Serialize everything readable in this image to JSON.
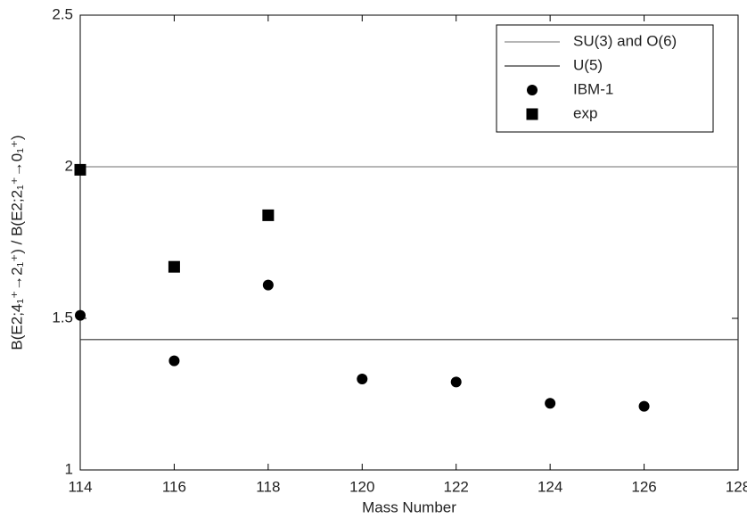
{
  "chart_data": {
    "type": "scatter",
    "xlabel": "Mass Number",
    "ylabel": "B(E2;4₁⁺→2₁⁺) / B(E2;2₁⁺→0₁⁺)",
    "xlim": [
      114,
      128
    ],
    "xticks": [
      114,
      116,
      118,
      120,
      122,
      124,
      126,
      128
    ],
    "ylim": [
      1,
      2.5
    ],
    "yticks": [
      1,
      1.5,
      2,
      2.5
    ],
    "legend": "upper right",
    "series": [
      {
        "name": "SU(3) and O(6)",
        "color": "#8a8a8a",
        "style": "line",
        "x": [
          114,
          128
        ],
        "values": [
          2,
          2
        ]
      },
      {
        "name": "U(5)",
        "color": "#333333",
        "style": "line",
        "x": [
          114,
          128
        ],
        "values": [
          1.43,
          1.43
        ]
      },
      {
        "name": "IBM-1",
        "color": "#000000",
        "style": "circle",
        "x": [
          114,
          116,
          118,
          120,
          122,
          124,
          126
        ],
        "values": [
          1.51,
          1.36,
          1.61,
          1.3,
          1.29,
          1.22,
          1.21
        ]
      },
      {
        "name": "exp",
        "color": "#000000",
        "style": "square",
        "x": [
          114,
          116,
          118
        ],
        "values": [
          1.99,
          1.67,
          1.84
        ]
      }
    ]
  }
}
